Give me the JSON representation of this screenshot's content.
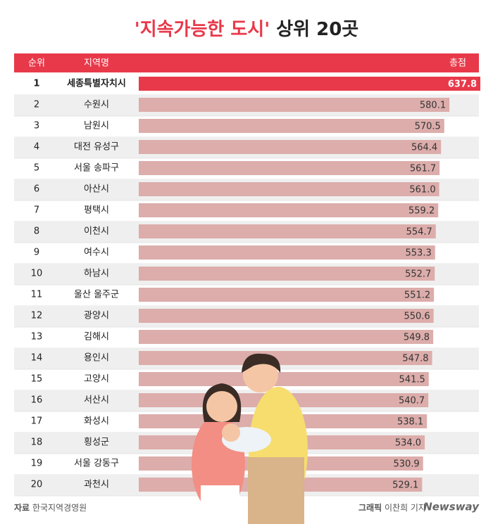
{
  "chart_data": {
    "type": "bar",
    "orientation": "horizontal",
    "title": {
      "highlight": "'지속가능한 도시'",
      "rest": "상위 20곳"
    },
    "headers": {
      "rank": "순위",
      "region": "지역명",
      "score": "총점"
    },
    "ranks": [
      1,
      2,
      3,
      4,
      5,
      6,
      7,
      8,
      9,
      10,
      11,
      12,
      13,
      14,
      15,
      16,
      17,
      18,
      19,
      20
    ],
    "categories": [
      "세종특별자치시",
      "수원시",
      "남원시",
      "대전 유성구",
      "서울 송파구",
      "아산시",
      "평택시",
      "이천시",
      "여수시",
      "하남시",
      "울산 울주군",
      "광양시",
      "김해시",
      "용인시",
      "고양시",
      "서산시",
      "화성시",
      "횡성군",
      "서울 강동구",
      "과천시"
    ],
    "values": [
      637.8,
      580.1,
      570.5,
      564.4,
      561.7,
      561.0,
      559.2,
      554.7,
      553.3,
      552.7,
      551.2,
      550.6,
      549.8,
      547.8,
      541.5,
      540.7,
      538.1,
      534.0,
      530.9,
      529.1
    ],
    "value_labels": [
      "637.8",
      "580.1",
      "570.5",
      "564.4",
      "561.7",
      "561.0",
      "559.2",
      "554.7",
      "553.3",
      "552.7",
      "551.2",
      "550.6",
      "549.8",
      "547.8",
      "541.5",
      "540.7",
      "538.1",
      "534.0",
      "530.9",
      "529.1"
    ],
    "highlight_color": "#e8394a",
    "color": "#dcadab",
    "source": {
      "label": "자료",
      "text": "한국지역경영원"
    },
    "credit": {
      "label": "그래픽",
      "text": "이찬희 기자"
    },
    "brand": "Newsway"
  }
}
